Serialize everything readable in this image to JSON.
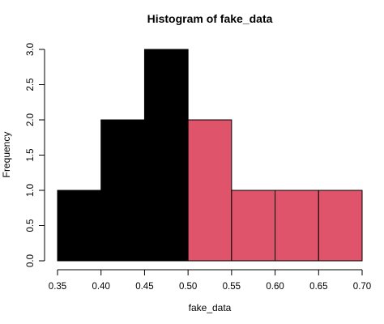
{
  "chart_data": {
    "type": "bar",
    "title": "Histogram of fake_data",
    "xlabel": "fake_data",
    "ylabel": "Frequency",
    "xlim": [
      0.35,
      0.7
    ],
    "ylim": [
      0,
      3
    ],
    "grid": false,
    "bins": [
      {
        "start": 0.35,
        "end": 0.4,
        "count": 1,
        "color": "#000000"
      },
      {
        "start": 0.4,
        "end": 0.45,
        "count": 2,
        "color": "#000000"
      },
      {
        "start": 0.45,
        "end": 0.5,
        "count": 3,
        "color": "#000000"
      },
      {
        "start": 0.5,
        "end": 0.55,
        "count": 2,
        "color": "#DF536B"
      },
      {
        "start": 0.55,
        "end": 0.6,
        "count": 1,
        "color": "#DF536B"
      },
      {
        "start": 0.6,
        "end": 0.65,
        "count": 1,
        "color": "#DF536B"
      },
      {
        "start": 0.65,
        "end": 0.7,
        "count": 1,
        "color": "#DF536B"
      }
    ],
    "x_ticks": [
      "0.35",
      "0.40",
      "0.45",
      "0.50",
      "0.55",
      "0.60",
      "0.65",
      "0.70"
    ],
    "y_ticks": [
      "0.0",
      "0.5",
      "1.0",
      "1.5",
      "2.0",
      "2.5",
      "3.0"
    ],
    "colors": {
      "left_bins": "#000000",
      "right_bins": "#DF536B",
      "bar_border": "#000000",
      "axis": "#000000"
    }
  }
}
